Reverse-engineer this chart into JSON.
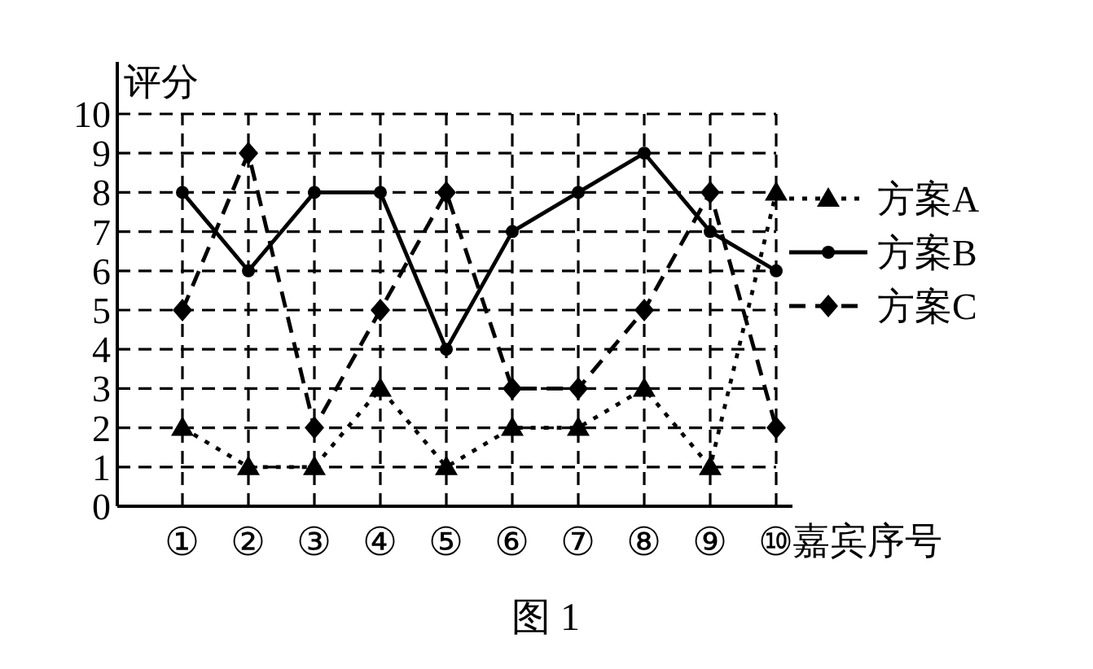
{
  "chart_data": {
    "type": "line",
    "ylabel": "评分",
    "xlabel": "嘉宾序号",
    "categories": [
      "①",
      "②",
      "③",
      "④",
      "⑤",
      "⑥",
      "⑦",
      "⑧",
      "⑨",
      "⑩"
    ],
    "series": [
      {
        "name": "方案A",
        "color": "#000000",
        "marker": "triangle",
        "line_style": "dotted",
        "values": [
          2,
          1,
          1,
          3,
          1,
          2,
          2,
          3,
          1,
          8
        ]
      },
      {
        "name": "方案B",
        "color": "#000000",
        "marker": "circle",
        "line_style": "solid",
        "values": [
          8,
          6,
          8,
          8,
          4,
          7,
          8,
          9,
          7,
          6
        ]
      },
      {
        "name": "方案C",
        "color": "#000000",
        "marker": "diamond",
        "line_style": "dashed",
        "values": [
          5,
          9,
          2,
          5,
          8,
          3,
          3,
          5,
          8,
          2
        ]
      }
    ],
    "ylim": [
      0,
      10
    ],
    "yticks": [
      0,
      1,
      2,
      3,
      4,
      5,
      6,
      7,
      8,
      9,
      10
    ],
    "grid": true,
    "legend": "right",
    "annotations": [
      "图 1"
    ]
  }
}
